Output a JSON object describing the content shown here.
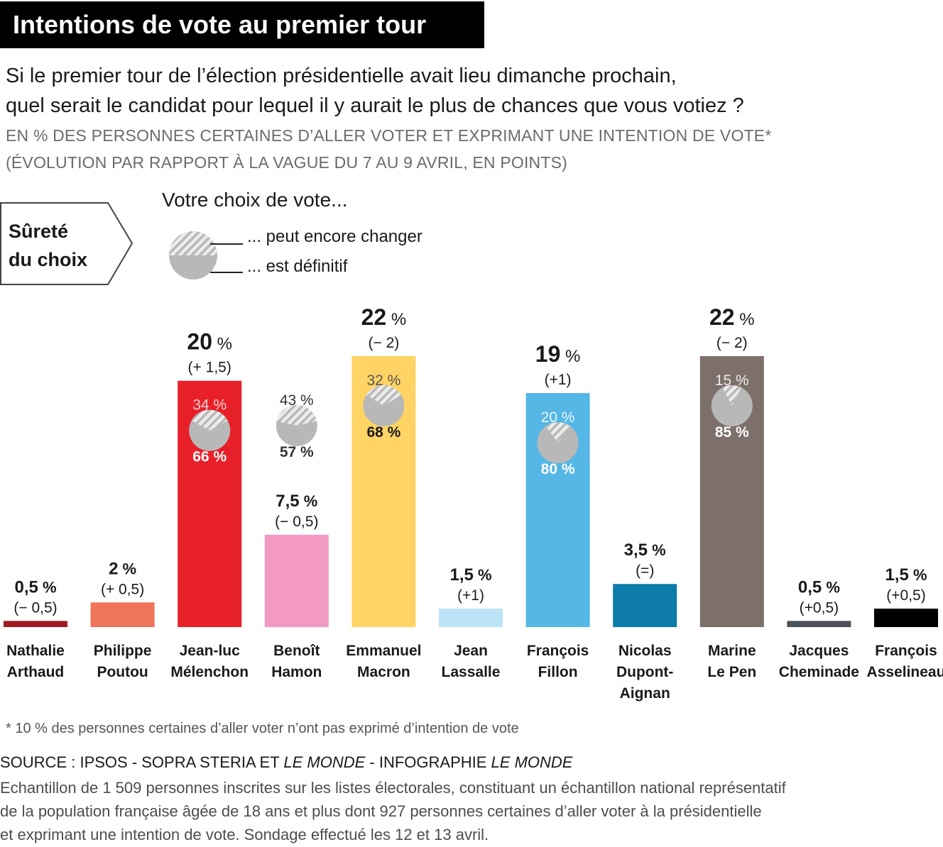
{
  "header": {
    "title": "Intentions de vote au premier tour",
    "question_line1": "Si le premier tour de l’élection présidentielle avait lieu dimanche prochain,",
    "question_line2": "quel serait le candidat pour lequel il y aurait le plus de chances que vous votiez ?",
    "unit_line1": "EN % DES PERSONNES CERTAINES D’ALLER VOTER ET EXPRIMANT UNE INTENTION DE VOTE*",
    "unit_line2": "(ÉVOLUTION PAR RAPPORT À LA VAGUE DU 7 AU 9 AVRIL, EN POINTS)"
  },
  "legend": {
    "box_line1": "Sûreté",
    "box_line2": "du choix",
    "title": "Votre choix de vote...",
    "item_changer": "... peut encore changer",
    "item_definitif": "... est définitif"
  },
  "colors": {
    "pie_fill": "#b8b8b8",
    "pie_hatch": "#e8e8e8",
    "text_dark": "#1a1a1a"
  },
  "chart_data": {
    "type": "bar",
    "title": "Intentions de vote au premier tour",
    "ylabel": "%",
    "ylim": [
      0,
      22
    ],
    "categories": [
      "Nathalie Arthaud",
      "Philippe Poutou",
      "Jean-luc Mélenchon",
      "Benoît Hamon",
      "Emmanuel Macron",
      "Jean Lassalle",
      "François Fillon",
      "Nicolas Dupont-Aignan",
      "Marine Le Pen",
      "Jacques Cheminade",
      "François Asselineau"
    ],
    "bars": [
      {
        "name_lines": [
          "Nathalie",
          "Arthaud"
        ],
        "value": 0.5,
        "value_label": "0,5",
        "change": "(− 0,5)",
        "color": "#9e1b22",
        "big": false
      },
      {
        "name_lines": [
          "Philippe",
          "Poutou"
        ],
        "value": 2,
        "value_label": "2",
        "change": "(+ 0,5)",
        "color": "#ef7459",
        "big": false
      },
      {
        "name_lines": [
          "Jean-luc",
          "Mélenchon"
        ],
        "value": 20,
        "value_label": "20",
        "change": "(+ 1,5)",
        "color": "#e8202a",
        "big": true,
        "pie": {
          "changer": 34,
          "definitif": 66,
          "changer_label": "34 %",
          "definitif_label": "66 %",
          "inside": true,
          "text_color": "#ffffff",
          "changer_color": "#ffd0d0"
        }
      },
      {
        "name_lines": [
          "Benoît",
          "Hamon"
        ],
        "value": 7.5,
        "value_label": "7,5",
        "change": "(− 0,5)",
        "color": "#f29ac4",
        "big": false,
        "pie": {
          "changer": 43,
          "definitif": 57,
          "changer_label": "43 %",
          "definitif_label": "57 %",
          "inside": false,
          "text_color": "#333333",
          "changer_color": "#333333"
        }
      },
      {
        "name_lines": [
          "Emmanuel",
          "Macron"
        ],
        "value": 22,
        "value_label": "22",
        "change": "(− 2)",
        "color": "#ffd464",
        "big": true,
        "pie": {
          "changer": 32,
          "definitif": 68,
          "changer_label": "32 %",
          "definitif_label": "68 %",
          "inside": true,
          "text_color": "#1a1a1a",
          "changer_color": "#555555"
        }
      },
      {
        "name_lines": [
          "Jean",
          "Lassalle"
        ],
        "value": 1.5,
        "value_label": "1,5",
        "change": "(+1)",
        "color": "#bde4f6",
        "big": false
      },
      {
        "name_lines": [
          "François",
          "Fillon"
        ],
        "value": 19,
        "value_label": "19",
        "change": "(+1)",
        "color": "#55b7e6",
        "big": true,
        "pie": {
          "changer": 20,
          "definitif": 80,
          "changer_label": "20 %",
          "definitif_label": "80 %",
          "inside": true,
          "text_color": "#ffffff",
          "changer_color": "#e8f6ff"
        }
      },
      {
        "name_lines": [
          "Nicolas",
          "Dupont-",
          "Aignan"
        ],
        "value": 3.5,
        "value_label": "3,5",
        "change": "(=)",
        "color": "#0d7cab",
        "big": false
      },
      {
        "name_lines": [
          "Marine",
          "Le Pen"
        ],
        "value": 22,
        "value_label": "22",
        "change": "(− 2)",
        "color": "#7d706b",
        "big": true,
        "pie": {
          "changer": 15,
          "definitif": 85,
          "changer_label": "15 %",
          "definitif_label": "85 %",
          "inside": true,
          "text_color": "#ffffff",
          "changer_color": "#ececec"
        }
      },
      {
        "name_lines": [
          "Jacques",
          "Cheminade"
        ],
        "value": 0.5,
        "value_label": "0,5",
        "change": "(+0,5)",
        "color": "#4a5258",
        "big": false
      },
      {
        "name_lines": [
          "François",
          "Asselineau"
        ],
        "value": 1.5,
        "value_label": "1,5",
        "change": "(+0,5)",
        "color": "#000000",
        "big": false
      }
    ]
  },
  "footer": {
    "footnote": "* 10 % des personnes certaines d’aller voter n’ont pas exprimé d’intention de vote",
    "source_a": "SOURCE : IPSOS - SOPRA STERIA ET ",
    "source_b": "LE MONDE",
    "source_c": " - INFOGRAPHIE ",
    "source_d": "LE MONDE",
    "sample_line1": "Echantillon de 1 509 personnes inscrites sur les listes électorales, constituant un échantillon national représentatif",
    "sample_line2": "de la population française âgée de 18 ans et plus dont 927 personnes certaines d’aller voter à la présidentielle",
    "sample_line3": "et exprimant une intention de vote. Sondage effectué les 12 et 13 avril."
  }
}
